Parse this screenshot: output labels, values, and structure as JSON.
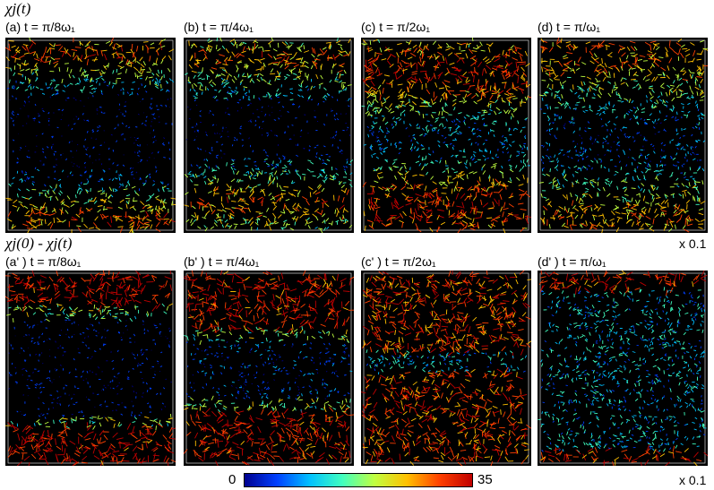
{
  "rows": [
    {
      "title": "χj(t)",
      "scale_note": "x 0.1",
      "panels": [
        {
          "label": "(a) t = π/8ω₁",
          "pattern": "A"
        },
        {
          "label": "(b) t = π/4ω₁",
          "pattern": "B"
        },
        {
          "label": "(c) t = π/2ω₁",
          "pattern": "C"
        },
        {
          "label": "(d) t = π/ω₁",
          "pattern": "D"
        }
      ]
    },
    {
      "title": "χj(0) - χj(t)",
      "scale_note": "x 0.1",
      "panels": [
        {
          "label": "(a' ) t = π/8ω₁",
          "pattern": "A2"
        },
        {
          "label": "(b' ) t = π/4ω₁",
          "pattern": "B2"
        },
        {
          "label": "(c' ) t = π/2ω₁",
          "pattern": "C2"
        },
        {
          "label": "(d' ) t = π/ω₁",
          "pattern": "D2"
        }
      ]
    }
  ],
  "colorbar": {
    "min": "0",
    "max": "35",
    "colormap": [
      "#00008f",
      "#0040ff",
      "#00c0ff",
      "#40ffc0",
      "#c0ff40",
      "#ffc000",
      "#ff4000",
      "#c00000"
    ]
  }
}
